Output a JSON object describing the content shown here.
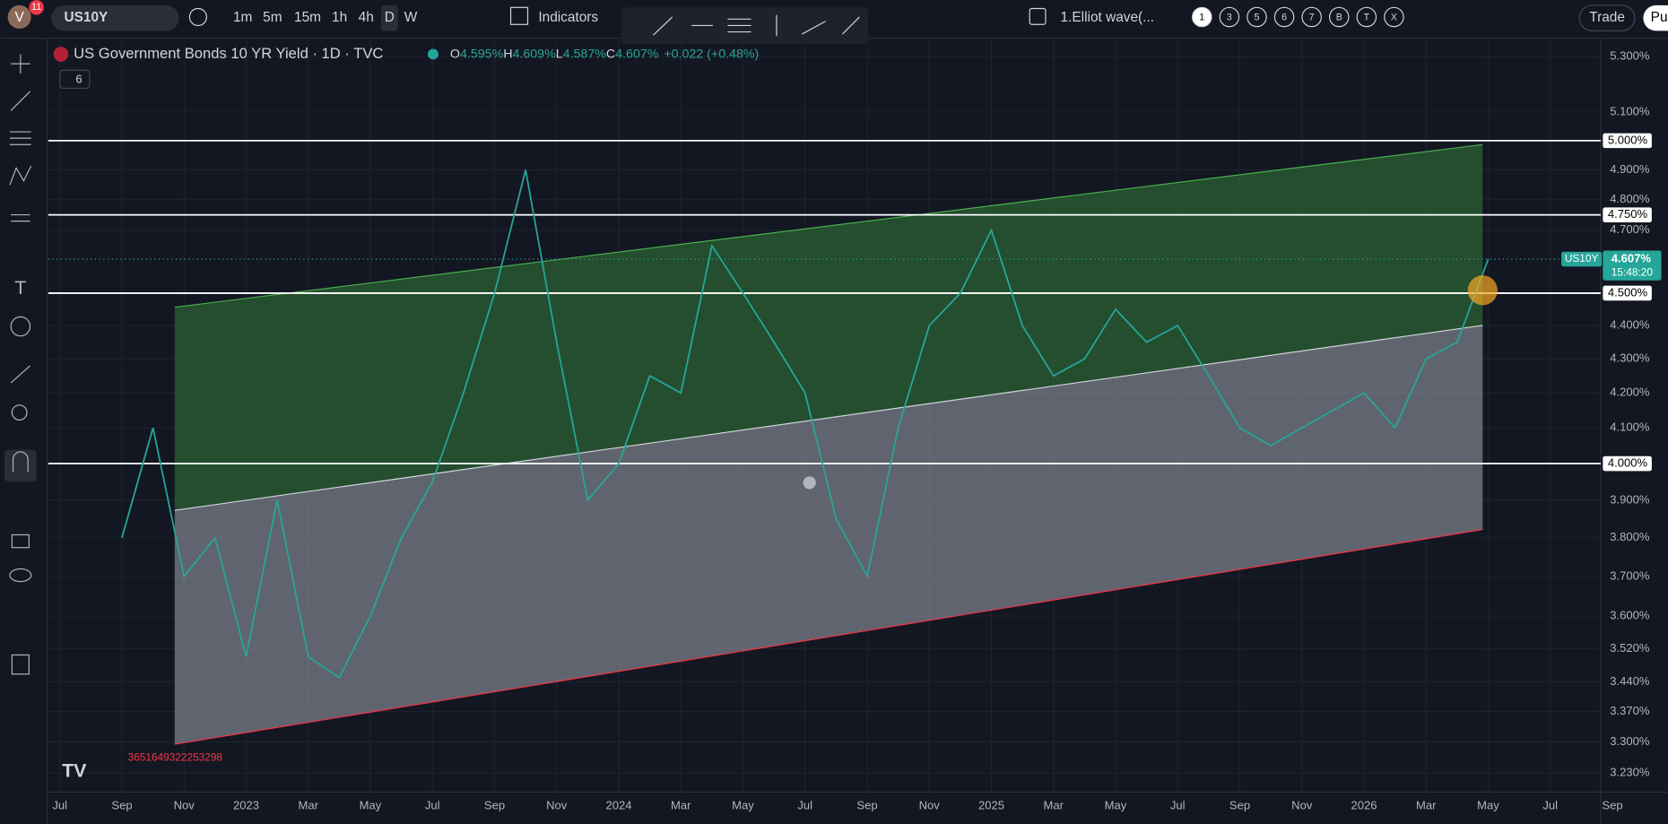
{
  "toolbar": {
    "badge": "11",
    "avatar": "V",
    "symbol": "US10Y",
    "intervals": [
      "1m",
      "5m",
      "15m",
      "1h",
      "4h",
      "D",
      "W"
    ],
    "indicators": "Indicators",
    "layout": "1.Elliot wave(...",
    "counts": [
      "1",
      "3",
      "5",
      "6",
      "7",
      "B",
      "T",
      "X"
    ],
    "trade": "Trade",
    "publish": "Pu"
  },
  "legend": {
    "title": "US Government Bonds 10 YR Yield · 1D · TVC",
    "ohlc": [
      {
        "key": "O",
        "value": "4.595%"
      },
      {
        "key": "H",
        "value": "4.609%"
      },
      {
        "key": "L",
        "value": "4.587%"
      },
      {
        "key": "C",
        "value": "4.607%"
      }
    ],
    "change": "+0.022 (+0.48%)",
    "collapsed": "6"
  },
  "chart_data": {
    "type": "line",
    "log": true,
    "grid": true,
    "color": "#26a69a",
    "ylim": [
      3.23,
      5.3
    ],
    "yticks": [
      {
        "value": 5.3,
        "label": "5.300%"
      },
      {
        "value": 5.1,
        "label": "5.100%"
      },
      {
        "value": 4.9,
        "label": "4.900%"
      },
      {
        "value": 4.8,
        "label": "4.800%"
      },
      {
        "value": 4.7,
        "label": "4.700%"
      },
      {
        "value": 4.4,
        "label": "4.400%"
      },
      {
        "value": 4.3,
        "label": "4.300%"
      },
      {
        "value": 4.2,
        "label": "4.200%"
      },
      {
        "value": 4.1,
        "label": "4.100%"
      },
      {
        "value": 3.9,
        "label": "3.900%"
      },
      {
        "value": 3.8,
        "label": "3.800%"
      },
      {
        "value": 3.7,
        "label": "3.700%"
      },
      {
        "value": 3.6,
        "label": "3.600%"
      },
      {
        "value": 3.52,
        "label": "3.520%"
      },
      {
        "value": 3.44,
        "label": "3.440%"
      },
      {
        "value": 3.37,
        "label": "3.370%"
      },
      {
        "value": 3.3,
        "label": "3.300%"
      },
      {
        "value": 3.23,
        "label": "3.230%"
      }
    ],
    "hlines": [
      {
        "value": 5.0,
        "label": "5.000%"
      },
      {
        "value": 4.75,
        "label": "4.750%"
      },
      {
        "value": 4.5,
        "label": "4.500%"
      },
      {
        "value": 4.0,
        "label": "4.000%"
      }
    ],
    "xticks": [
      "Jul",
      "Sep",
      "Nov",
      "2023",
      "Mar",
      "May",
      "Jul",
      "Sep",
      "Nov",
      "2024",
      "Mar",
      "May",
      "Jul",
      "Sep",
      "Nov",
      "2025",
      "Mar",
      "May",
      "Jul",
      "Sep",
      "Nov",
      "2026",
      "Mar",
      "May",
      "Jul",
      "Sep"
    ],
    "values": [
      null,
      null,
      3.8,
      4.1,
      3.7,
      3.8,
      3.5,
      3.9,
      3.5,
      3.45,
      3.6,
      3.8,
      3.95,
      4.2,
      4.5,
      4.9,
      4.35,
      3.9,
      4.0,
      4.25,
      4.2,
      4.65,
      4.5,
      4.35,
      4.2,
      3.85,
      3.7,
      4.1,
      4.4,
      4.5,
      4.7,
      4.4,
      4.25,
      4.3,
      4.45,
      4.35,
      4.4,
      4.25,
      4.1,
      4.05,
      4.1,
      4.15,
      4.2,
      4.1,
      4.3,
      4.35,
      4.607
    ],
    "last": {
      "symbol": "US10Y",
      "value": 4.607,
      "label": "4.607%",
      "countdown": "15:48:20"
    },
    "note": "3651649322253298"
  }
}
